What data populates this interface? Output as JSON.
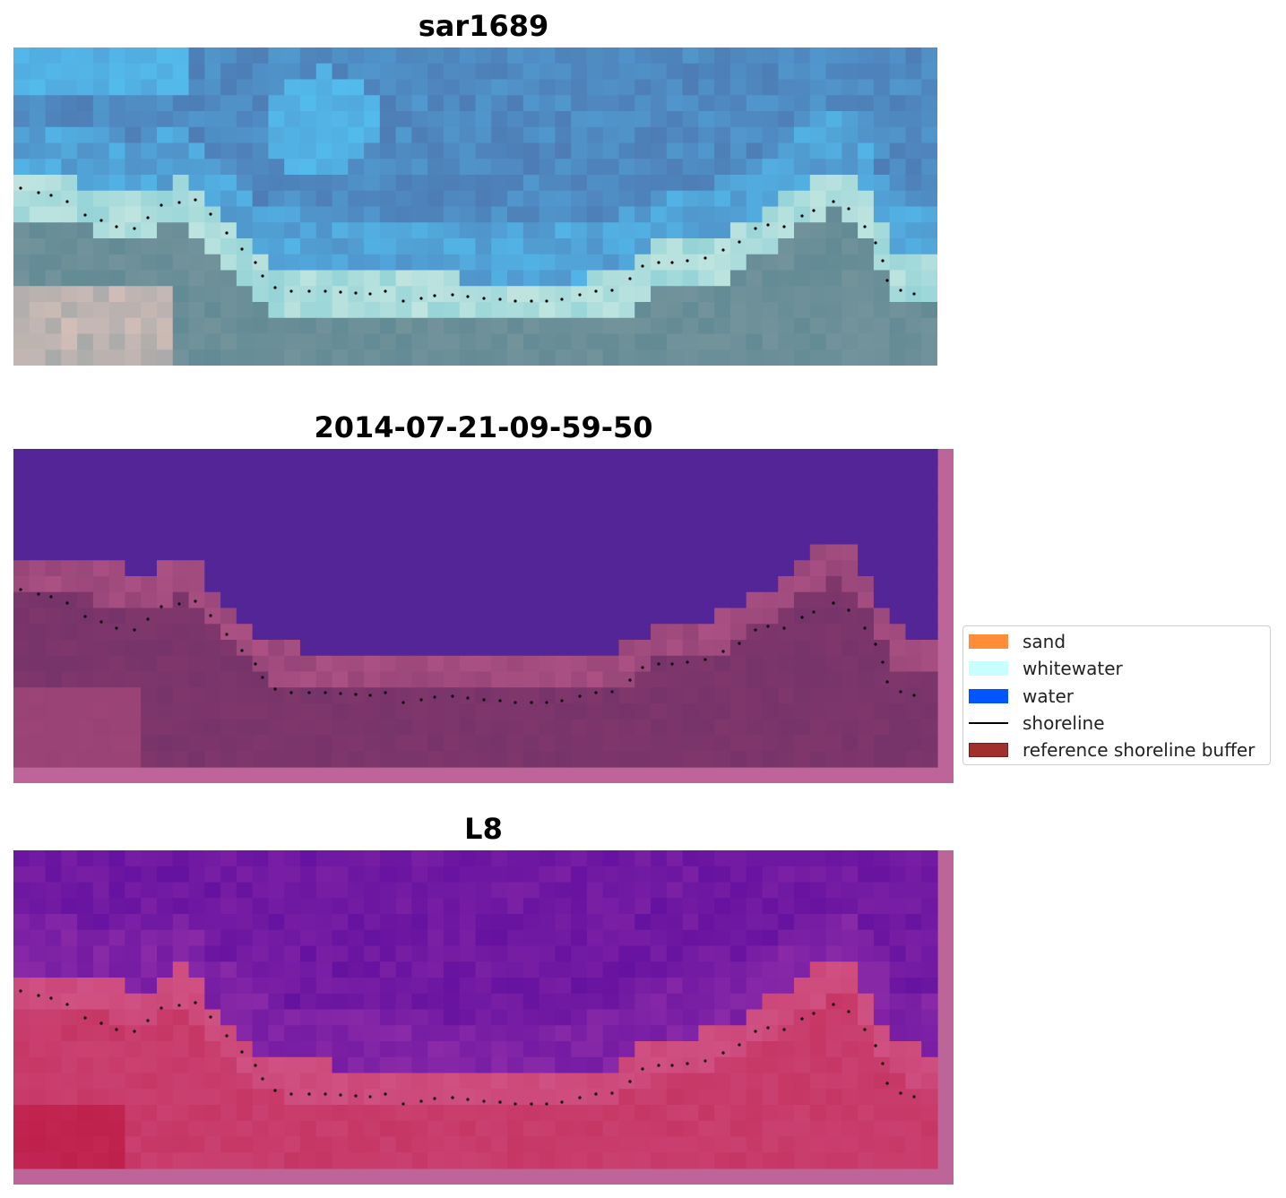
{
  "panels": [
    {
      "title": "sar1689"
    },
    {
      "title": "2014-07-21-09-59-50"
    },
    {
      "title": "L8"
    }
  ],
  "legend": {
    "items": [
      {
        "label": "sand",
        "color": "#ff8c37",
        "kind": "patch"
      },
      {
        "label": "whitewater",
        "color": "#c8ffff",
        "kind": "patch"
      },
      {
        "label": "water",
        "color": "#0055ff",
        "kind": "patch"
      },
      {
        "label": "shoreline",
        "color": "#000000",
        "kind": "line"
      },
      {
        "label": "reference shoreline buffer",
        "color": "#a0302c",
        "kind": "patch"
      }
    ]
  },
  "colors": {
    "rgb_water_light": "#54c3f4",
    "rgb_water_dark": "#4d74ad",
    "rgb_whitewater": "#d8eee4",
    "rgb_land": "#5b8792",
    "class_water": "#532596",
    "class_land": "#76346a",
    "class_border": "#bd6598",
    "index_water": "#5a0a9e",
    "index_land": "#c4305e",
    "shoreline_dots": "#000000"
  }
}
